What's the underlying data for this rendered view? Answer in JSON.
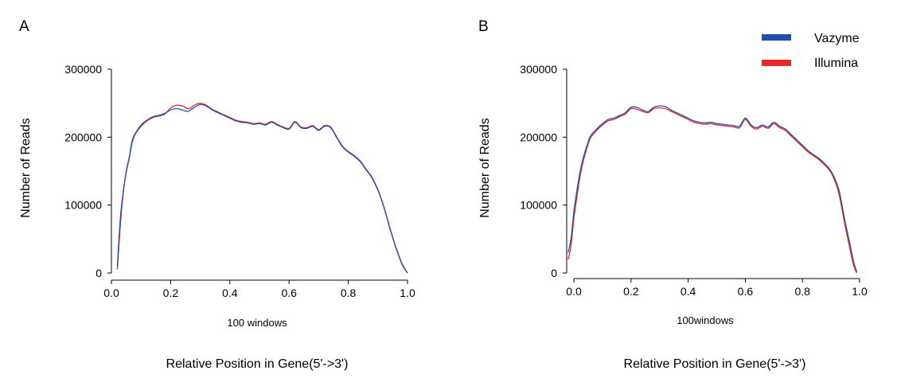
{
  "legend": {
    "placement": "top-right",
    "items": [
      {
        "label": "Vazyme",
        "color": "#1f4fa8"
      },
      {
        "label": "Illumina",
        "color": "#e8262b"
      }
    ]
  },
  "chart_data": [
    {
      "panel_label": "A",
      "type": "line",
      "xlabel": "100 windows",
      "caption": "Relative Position in Gene(5'->3')",
      "ylabel": "Number of Reads",
      "xlim": [
        0.0,
        1.0
      ],
      "ylim": [
        0,
        300000
      ],
      "x_ticks": [
        0.0,
        0.2,
        0.4,
        0.6,
        0.8,
        1.0
      ],
      "x_tick_labels": [
        "0.0",
        "0.2",
        "0.4",
        "0.6",
        "0.8",
        "1.0"
      ],
      "y_ticks": [
        0,
        100000,
        200000,
        300000
      ],
      "y_tick_labels": [
        "0",
        "100000",
        "200000",
        "300000"
      ],
      "grid": false,
      "x": [
        0.02,
        0.03,
        0.04,
        0.05,
        0.06,
        0.07,
        0.08,
        0.1,
        0.12,
        0.14,
        0.16,
        0.18,
        0.2,
        0.22,
        0.24,
        0.26,
        0.28,
        0.3,
        0.32,
        0.34,
        0.36,
        0.38,
        0.4,
        0.42,
        0.44,
        0.46,
        0.48,
        0.5,
        0.52,
        0.54,
        0.56,
        0.58,
        0.6,
        0.62,
        0.64,
        0.66,
        0.68,
        0.7,
        0.72,
        0.74,
        0.76,
        0.78,
        0.8,
        0.82,
        0.84,
        0.86,
        0.88,
        0.9,
        0.91,
        0.92,
        0.93,
        0.94,
        0.95,
        0.96,
        0.97,
        0.98,
        0.99,
        1.0
      ],
      "series": [
        {
          "name": "Vazyme",
          "color": "#1f4fa8",
          "values": [
            10000,
            80000,
            120000,
            150000,
            170000,
            195000,
            205000,
            218000,
            225000,
            230000,
            232000,
            235000,
            240000,
            242000,
            240000,
            238000,
            244000,
            248000,
            246000,
            240000,
            236000,
            232000,
            228000,
            224000,
            222000,
            221000,
            219000,
            220000,
            218000,
            222000,
            218000,
            214000,
            212000,
            222000,
            214000,
            213000,
            216000,
            210000,
            216000,
            214000,
            200000,
            186000,
            178000,
            172000,
            164000,
            152000,
            140000,
            122000,
            110000,
            97000,
            82000,
            66000,
            52000,
            38000,
            26000,
            14000,
            6000,
            0
          ]
        },
        {
          "name": "Illumina",
          "color": "#e8262b",
          "values": [
            5000,
            70000,
            118000,
            148000,
            168000,
            192000,
            204000,
            216000,
            224000,
            229000,
            231000,
            234000,
            243000,
            247000,
            246000,
            242000,
            247000,
            250000,
            247000,
            241000,
            237000,
            233000,
            229000,
            225000,
            223000,
            222000,
            220000,
            221000,
            219000,
            223000,
            219000,
            215000,
            213000,
            223000,
            215000,
            214000,
            217000,
            211000,
            217000,
            215000,
            201000,
            187000,
            179000,
            173000,
            165000,
            153000,
            141000,
            123000,
            111000,
            98000,
            83000,
            67000,
            53000,
            39000,
            27000,
            15000,
            7000,
            0
          ]
        }
      ]
    },
    {
      "panel_label": "B",
      "type": "line",
      "xlabel": "100windows",
      "caption": "Relative Position in Gene(5'->3')",
      "ylabel": "Number of Reads",
      "xlim": [
        0.0,
        1.0
      ],
      "ylim": [
        0,
        300000
      ],
      "x_ticks": [
        0.0,
        0.2,
        0.4,
        0.6,
        0.8,
        1.0
      ],
      "x_tick_labels": [
        "0.0",
        "0.2",
        "0.4",
        "0.6",
        "0.8",
        "1.0"
      ],
      "y_ticks": [
        0,
        100000,
        200000,
        300000
      ],
      "y_tick_labels": [
        "0",
        "100000",
        "200000",
        "300000"
      ],
      "grid": false,
      "x": [
        -0.02,
        -0.01,
        0.0,
        0.01,
        0.02,
        0.03,
        0.04,
        0.05,
        0.06,
        0.08,
        0.1,
        0.12,
        0.14,
        0.16,
        0.18,
        0.2,
        0.22,
        0.24,
        0.26,
        0.28,
        0.3,
        0.32,
        0.34,
        0.36,
        0.38,
        0.4,
        0.42,
        0.44,
        0.46,
        0.48,
        0.5,
        0.52,
        0.54,
        0.56,
        0.58,
        0.6,
        0.62,
        0.64,
        0.66,
        0.68,
        0.7,
        0.72,
        0.74,
        0.76,
        0.78,
        0.8,
        0.82,
        0.84,
        0.86,
        0.88,
        0.9,
        0.92,
        0.93,
        0.94,
        0.95,
        0.96,
        0.97,
        0.98,
        0.99
      ],
      "series": [
        {
          "name": "Vazyme",
          "color": "#1f4fa8",
          "values": [
            30000,
            50000,
            90000,
            120000,
            145000,
            165000,
            180000,
            193000,
            203000,
            212000,
            220000,
            226000,
            228000,
            232000,
            236000,
            244000,
            244000,
            240000,
            238000,
            244000,
            246000,
            245000,
            240000,
            236000,
            232000,
            228000,
            224000,
            222000,
            221000,
            222000,
            220000,
            219000,
            218000,
            217000,
            216000,
            228000,
            218000,
            214000,
            218000,
            215000,
            222000,
            216000,
            212000,
            204000,
            196000,
            188000,
            180000,
            174000,
            168000,
            160000,
            150000,
            132000,
            118000,
            96000,
            74000,
            55000,
            35000,
            15000,
            2000
          ]
        },
        {
          "name": "Illumina",
          "color": "#e8262b",
          "values": [
            20000,
            40000,
            80000,
            110000,
            138000,
            160000,
            176000,
            190000,
            200000,
            210000,
            218000,
            224000,
            226000,
            230000,
            234000,
            242000,
            241000,
            238000,
            236000,
            242000,
            243000,
            242000,
            238000,
            234000,
            230000,
            226000,
            222000,
            220000,
            219000,
            220000,
            218000,
            217000,
            216000,
            215000,
            214000,
            226000,
            216000,
            212000,
            216000,
            213000,
            220000,
            214000,
            210000,
            202000,
            194000,
            186000,
            178000,
            172000,
            166000,
            158000,
            148000,
            128000,
            112000,
            90000,
            68000,
            48000,
            28000,
            10000,
            0
          ]
        }
      ]
    }
  ]
}
